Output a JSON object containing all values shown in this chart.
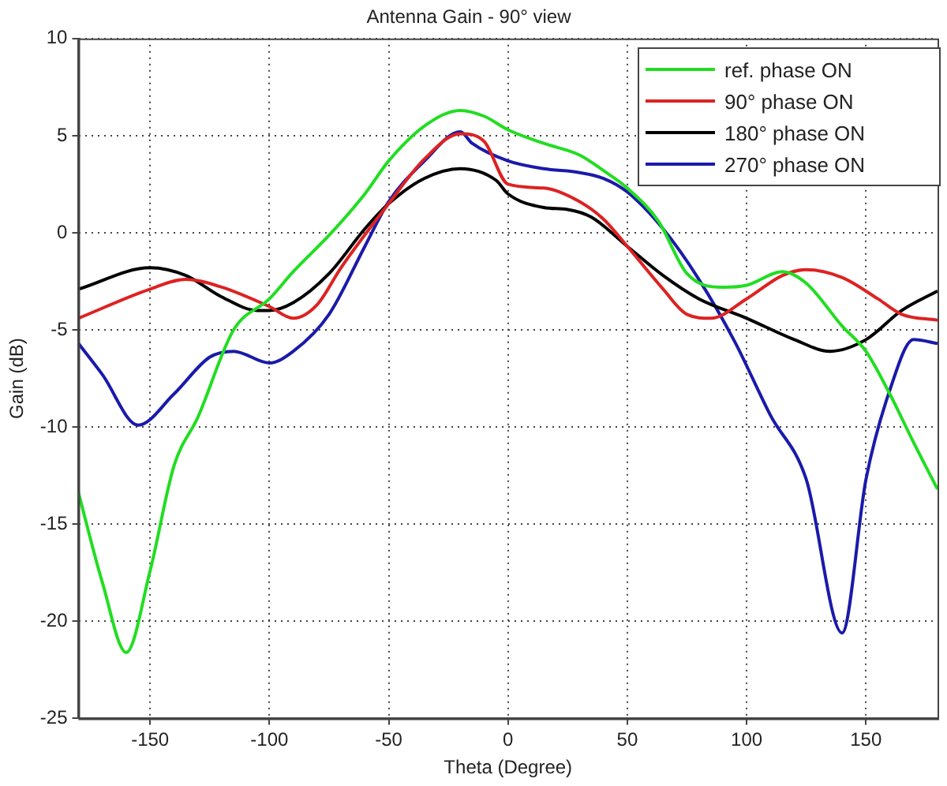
{
  "chart_data": {
    "type": "line",
    "title": "Antenna Gain - 90° view",
    "xlabel": "Theta (Degree)",
    "ylabel": "Gain (dB)",
    "xlim": [
      -180,
      180
    ],
    "xticks": [
      -150,
      -100,
      -50,
      0,
      50,
      100,
      150
    ],
    "ylim": [
      -25,
      10
    ],
    "yticks": [
      -25,
      -20,
      -15,
      -10,
      -5,
      0,
      5,
      10
    ],
    "grid": true,
    "legend": "top right",
    "series": [
      {
        "name": "ref. phase ON",
        "color": "#22dd22",
        "x": [
          -180,
          -170,
          -160,
          -150,
          -140,
          -130,
          -115,
          -100,
          -90,
          -74,
          -60,
          -50,
          -35,
          -20,
          -10,
          0,
          15,
          30,
          40,
          50,
          63,
          75,
          90,
          100,
          115,
          125,
          140,
          150,
          160,
          170,
          180
        ],
        "values": [
          -13.4,
          -18,
          -21.6,
          -17.4,
          -12,
          -9.5,
          -5,
          -3.4,
          -2,
          0,
          2,
          3.7,
          5.5,
          6.3,
          6,
          5.3,
          4.6,
          4,
          3.2,
          2.3,
          0.6,
          -2.1,
          -2.8,
          -2.7,
          -2,
          -2.6,
          -4.8,
          -6.1,
          -8.3,
          -10.8,
          -13.2
        ]
      },
      {
        "name": "90° phase ON",
        "color": "#dd2222",
        "x": [
          -180,
          -150,
          -135,
          -120,
          -100,
          -90,
          -80,
          -70,
          -50,
          -35,
          -20,
          -10,
          0,
          15,
          30,
          40,
          50,
          65,
          75,
          85,
          100,
          115,
          125,
          140,
          155,
          165,
          180
        ],
        "values": [
          -4.4,
          -2.9,
          -2.4,
          -2.8,
          -3.8,
          -4.4,
          -3.7,
          -1.8,
          1.5,
          3.8,
          5.1,
          4.7,
          2.5,
          2.3,
          1.6,
          0.7,
          -0.7,
          -2.9,
          -4.2,
          -4.4,
          -3.4,
          -2.2,
          -1.9,
          -2.3,
          -3.4,
          -4.2,
          -4.5
        ]
      },
      {
        "name": "180° phase ON",
        "color": "#000000",
        "x": [
          -180,
          -150,
          -135,
          -120,
          -105,
          -100,
          -90,
          -75,
          -60,
          -50,
          -35,
          -20,
          -5,
          0,
          15,
          25,
          35,
          50,
          65,
          80,
          100,
          120,
          135,
          150,
          165,
          180
        ],
        "values": [
          -2.9,
          -1.8,
          -2.2,
          -3.3,
          -4,
          -4,
          -3.6,
          -2.1,
          0.2,
          1.5,
          2.8,
          3.3,
          2.7,
          2,
          1.3,
          1.2,
          0.8,
          -0.7,
          -2.2,
          -3.4,
          -4.4,
          -5.5,
          -6.1,
          -5.5,
          -4,
          -3
        ]
      },
      {
        "name": "270° phase ON",
        "color": "#1a1aaa",
        "x": [
          -180,
          -170,
          -155,
          -140,
          -125,
          -115,
          -100,
          -90,
          -75,
          -60,
          -50,
          -35,
          -20,
          -15,
          0,
          15,
          30,
          40,
          50,
          65,
          80,
          95,
          110,
          125,
          140,
          150,
          160,
          170,
          180
        ],
        "values": [
          -5.7,
          -7.3,
          -9.9,
          -8.3,
          -6.4,
          -6.1,
          -6.7,
          -6.1,
          -4.2,
          -0.7,
          1.6,
          3.7,
          5.2,
          4.6,
          3.7,
          3.3,
          3.1,
          2.8,
          2.1,
          0.2,
          -2.4,
          -5.6,
          -9.4,
          -12.7,
          -20.6,
          -12.7,
          -8.1,
          -5.5,
          -5.7
        ]
      }
    ]
  }
}
